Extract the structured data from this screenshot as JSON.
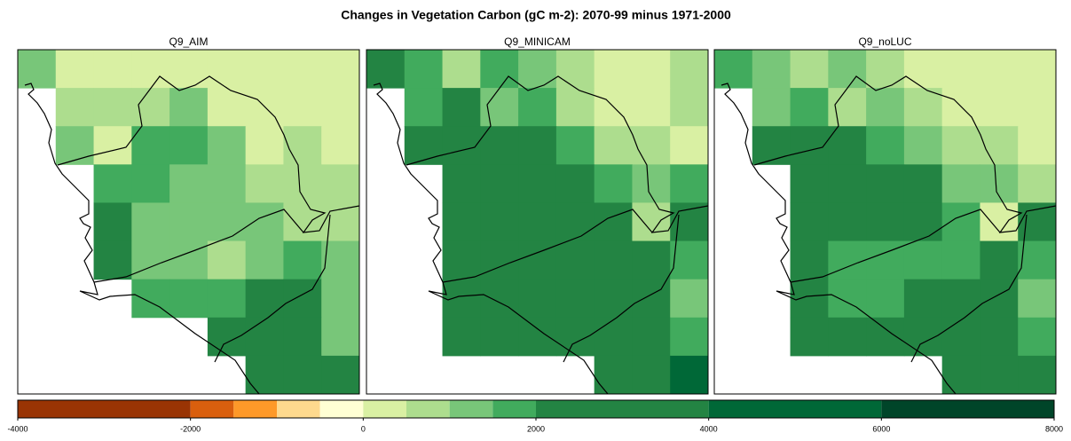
{
  "chart_data": {
    "type": "grid-map",
    "title": "Changes in Vegetation Carbon (gC m-2): 2070-99 minus 1971-2000",
    "panels": [
      {
        "title": "Q9_AIM",
        "values": [
          [
            1250,
            250,
            250,
            250,
            250,
            250,
            250,
            250,
            250
          ],
          [
            null,
            750,
            750,
            750,
            1250,
            250,
            250,
            250,
            250
          ],
          [
            null,
            1250,
            250,
            1750,
            1750,
            1250,
            250,
            750,
            250
          ],
          [
            null,
            null,
            1750,
            1750,
            1250,
            1250,
            750,
            750,
            750
          ],
          [
            null,
            null,
            3000,
            1250,
            1250,
            1250,
            1250,
            750,
            750
          ],
          [
            null,
            null,
            3000,
            1250,
            1250,
            750,
            1250,
            1750,
            1250
          ],
          [
            null,
            null,
            null,
            1750,
            1750,
            1750,
            3000,
            3000,
            1250
          ],
          [
            null,
            null,
            null,
            null,
            null,
            3000,
            3000,
            3000,
            1250
          ],
          [
            null,
            null,
            null,
            null,
            null,
            null,
            3000,
            3000,
            3000
          ]
        ]
      },
      {
        "title": "Q9_MINICAM",
        "values": [
          [
            3000,
            1750,
            750,
            1750,
            1250,
            750,
            250,
            250,
            750
          ],
          [
            null,
            1750,
            3000,
            1250,
            1750,
            750,
            250,
            250,
            750
          ],
          [
            null,
            3000,
            3000,
            3000,
            3000,
            1750,
            750,
            750,
            250
          ],
          [
            null,
            null,
            3000,
            3000,
            3000,
            3000,
            1750,
            1250,
            1750
          ],
          [
            null,
            null,
            3000,
            3000,
            3000,
            3000,
            3000,
            750,
            3000
          ],
          [
            null,
            null,
            3000,
            3000,
            3000,
            3000,
            3000,
            3000,
            1750
          ],
          [
            null,
            null,
            3000,
            3000,
            3000,
            3000,
            3000,
            3000,
            1250
          ],
          [
            null,
            null,
            3000,
            3000,
            3000,
            3000,
            3000,
            3000,
            1750
          ],
          [
            null,
            null,
            null,
            null,
            null,
            null,
            3000,
            3000,
            5000
          ]
        ]
      },
      {
        "title": "Q9_noLUC",
        "values": [
          [
            1750,
            1250,
            750,
            1250,
            750,
            250,
            250,
            250,
            250
          ],
          [
            null,
            1250,
            1750,
            750,
            1250,
            750,
            250,
            250,
            250
          ],
          [
            null,
            3000,
            3000,
            3000,
            1750,
            1250,
            750,
            750,
            250
          ],
          [
            null,
            null,
            3000,
            3000,
            3000,
            3000,
            1250,
            1250,
            750
          ],
          [
            null,
            null,
            3000,
            3000,
            3000,
            3000,
            1750,
            250,
            3000
          ],
          [
            null,
            null,
            3000,
            1750,
            1750,
            1750,
            1750,
            3000,
            1750
          ],
          [
            null,
            null,
            3000,
            1750,
            1750,
            3000,
            3000,
            3000,
            1250
          ],
          [
            null,
            null,
            3000,
            3000,
            3000,
            3000,
            3000,
            3000,
            1750
          ],
          [
            null,
            null,
            null,
            null,
            null,
            null,
            3000,
            3000,
            3000
          ]
        ]
      }
    ],
    "levels": [
      -4000,
      -2000,
      -1500,
      -1000,
      -500,
      0,
      500,
      1000,
      1500,
      2000,
      4000,
      6000,
      8000
    ],
    "colors": [
      "#993404",
      "#d95f0e",
      "#fe9929",
      "#fed98e",
      "#ffffd4",
      "#d9f0a3",
      "#addd8e",
      "#78c679",
      "#41ab5d",
      "#238443",
      "#006837",
      "#004529"
    ],
    "ticks": [
      -4000,
      -2000,
      0,
      2000,
      4000,
      6000,
      8000
    ]
  }
}
